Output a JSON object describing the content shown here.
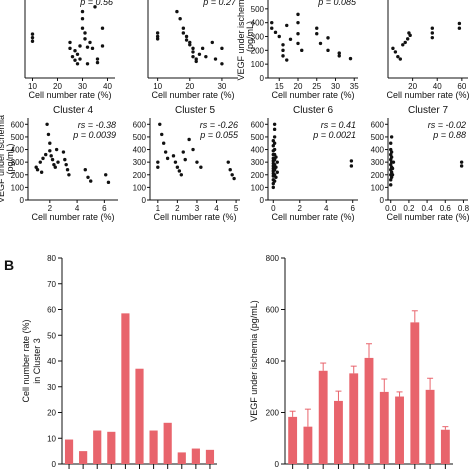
{
  "panels": {
    "A": "",
    "B": "B"
  },
  "chart_data": [
    {
      "type": "scatter",
      "id": "c1",
      "title": "",
      "stats": {
        "r": "",
        "p": "p = 0.56"
      },
      "xlabel": "Cell number rate (%)",
      "ylabel": "",
      "xticks": [
        10,
        20,
        30,
        40
      ],
      "yticks": [],
      "xlim": [
        7,
        43
      ],
      "ylim": [
        0,
        700
      ],
      "points": [
        [
          10,
          340
        ],
        [
          10,
          370
        ],
        [
          10,
          310
        ],
        [
          25,
          300
        ],
        [
          25,
          250
        ],
        [
          26,
          180
        ],
        [
          27,
          230
        ],
        [
          27,
          150
        ],
        [
          28,
          200
        ],
        [
          28,
          120
        ],
        [
          29,
          270
        ],
        [
          29,
          160
        ],
        [
          30,
          560
        ],
        [
          30,
          500
        ],
        [
          30,
          420
        ],
        [
          31,
          380
        ],
        [
          31,
          330
        ],
        [
          32,
          260
        ],
        [
          32,
          120
        ],
        [
          33,
          300
        ],
        [
          34,
          250
        ],
        [
          35,
          600
        ],
        [
          36,
          160
        ],
        [
          36,
          130
        ],
        [
          38,
          420
        ],
        [
          38,
          270
        ]
      ]
    },
    {
      "type": "scatter",
      "id": "c2",
      "title": "",
      "stats": {
        "r": "",
        "p": "p = 0.27"
      },
      "xlabel": "Cell number rate (%)",
      "ylabel": "",
      "xticks": [
        10,
        20,
        30
      ],
      "yticks": [],
      "xlim": [
        7,
        35
      ],
      "ylim": [
        0,
        700
      ],
      "points": [
        [
          10,
          350
        ],
        [
          10,
          380
        ],
        [
          10,
          330
        ],
        [
          16,
          560
        ],
        [
          17,
          500
        ],
        [
          18,
          420
        ],
        [
          18,
          380
        ],
        [
          19,
          350
        ],
        [
          19,
          320
        ],
        [
          20,
          300
        ],
        [
          20,
          280
        ],
        [
          21,
          250
        ],
        [
          21,
          220
        ],
        [
          21,
          180
        ],
        [
          22,
          160
        ],
        [
          22,
          140
        ],
        [
          23,
          200
        ],
        [
          24,
          250
        ],
        [
          25,
          180
        ],
        [
          27,
          300
        ],
        [
          28,
          160
        ],
        [
          30,
          250
        ],
        [
          30,
          120
        ]
      ]
    },
    {
      "type": "scatter",
      "id": "c3",
      "title": "",
      "stats": {
        "r": "",
        "p": "p = 0.085"
      },
      "xlabel": "Cell number rate (%)",
      "ylabel": "VEGF under ischemia (pg/mL)",
      "xticks": [
        15,
        20,
        25,
        30,
        35
      ],
      "yticks": [
        0,
        100,
        200,
        300,
        400,
        500
      ],
      "xlim": [
        12,
        36
      ],
      "ylim": [
        0,
        600
      ],
      "points": [
        [
          13,
          400
        ],
        [
          13,
          360
        ],
        [
          14,
          330
        ],
        [
          15,
          300
        ],
        [
          16,
          240
        ],
        [
          16,
          200
        ],
        [
          16,
          160
        ],
        [
          17,
          380
        ],
        [
          17,
          130
        ],
        [
          18,
          280
        ],
        [
          20,
          460
        ],
        [
          20,
          400
        ],
        [
          20,
          320
        ],
        [
          20,
          250
        ],
        [
          21,
          200
        ],
        [
          25,
          360
        ],
        [
          25,
          320
        ],
        [
          26,
          250
        ],
        [
          28,
          290
        ],
        [
          28,
          200
        ],
        [
          31,
          180
        ],
        [
          31,
          160
        ],
        [
          34,
          140
        ]
      ]
    },
    {
      "type": "scatter",
      "id": "c4top",
      "title": "",
      "stats": {
        "r": "",
        "p": ""
      },
      "xlabel": "Cell number rate (%)",
      "ylabel": "",
      "xticks": [
        20,
        40,
        60
      ],
      "yticks": [],
      "xlim": [
        0,
        65
      ],
      "ylim": [
        0,
        700
      ],
      "points": [
        [
          4,
          250
        ],
        [
          6,
          220
        ],
        [
          8,
          180
        ],
        [
          10,
          160
        ],
        [
          12,
          280
        ],
        [
          14,
          300
        ],
        [
          16,
          330
        ],
        [
          17,
          380
        ],
        [
          18,
          360
        ],
        [
          36,
          420
        ],
        [
          36,
          380
        ],
        [
          36,
          340
        ],
        [
          58,
          460
        ],
        [
          58,
          420
        ]
      ]
    },
    {
      "type": "scatter",
      "id": "cluster4",
      "title": "Cluster 4",
      "stats": {
        "r": "rs = -0.38",
        "p": "p = 0.0039"
      },
      "xlabel": "Cell number rate (%)",
      "ylabel": "VEGF under ischemia (pg/mL)",
      "xticks": [
        2,
        4,
        6
      ],
      "yticks": [
        0,
        100,
        200,
        300,
        400,
        500,
        600
      ],
      "xlim": [
        0.4,
        7
      ],
      "ylim": [
        0,
        650
      ],
      "points": [
        [
          1.0,
          260
        ],
        [
          1.1,
          240
        ],
        [
          1.3,
          300
        ],
        [
          1.4,
          220
        ],
        [
          1.5,
          330
        ],
        [
          1.7,
          360
        ],
        [
          1.8,
          600
        ],
        [
          1.9,
          520
        ],
        [
          2.0,
          450
        ],
        [
          2.0,
          390
        ],
        [
          2.1,
          350
        ],
        [
          2.2,
          320
        ],
        [
          2.3,
          280
        ],
        [
          2.4,
          260
        ],
        [
          2.5,
          400
        ],
        [
          2.6,
          300
        ],
        [
          3.0,
          380
        ],
        [
          3.1,
          320
        ],
        [
          3.2,
          280
        ],
        [
          3.3,
          240
        ],
        [
          3.4,
          200
        ],
        [
          4.6,
          240
        ],
        [
          4.8,
          180
        ],
        [
          5.0,
          150
        ],
        [
          6.1,
          200
        ],
        [
          6.3,
          140
        ]
      ]
    },
    {
      "type": "scatter",
      "id": "cluster5",
      "title": "Cluster 5",
      "stats": {
        "r": "rs = -0.26",
        "p": "p = 0.055"
      },
      "xlabel": "Cell number rate (%)",
      "ylabel": "",
      "xticks": [
        1,
        2,
        3,
        4,
        5
      ],
      "yticks": [
        0,
        100,
        200,
        300,
        400,
        500,
        600
      ],
      "xlim": [
        0.6,
        5.2
      ],
      "ylim": [
        0,
        650
      ],
      "points": [
        [
          1.0,
          260
        ],
        [
          1.0,
          300
        ],
        [
          1.1,
          600
        ],
        [
          1.2,
          520
        ],
        [
          1.3,
          450
        ],
        [
          1.4,
          380
        ],
        [
          1.5,
          330
        ],
        [
          1.8,
          350
        ],
        [
          1.9,
          300
        ],
        [
          2.0,
          260
        ],
        [
          2.1,
          230
        ],
        [
          2.2,
          200
        ],
        [
          2.3,
          380
        ],
        [
          2.4,
          320
        ],
        [
          2.6,
          480
        ],
        [
          2.8,
          400
        ],
        [
          3.0,
          300
        ],
        [
          3.2,
          260
        ],
        [
          4.6,
          300
        ],
        [
          4.7,
          240
        ],
        [
          4.8,
          200
        ],
        [
          4.9,
          170
        ]
      ]
    },
    {
      "type": "scatter",
      "id": "cluster6",
      "title": "Cluster 6",
      "stats": {
        "r": "rs = 0.41",
        "p": "p = 0.0021"
      },
      "xlabel": "Cell number rate (%)",
      "ylabel": "",
      "xticks": [
        0,
        2,
        4,
        6
      ],
      "yticks": [
        0,
        100,
        200,
        300,
        400,
        500,
        600
      ],
      "xlim": [
        -0.4,
        6.4
      ],
      "ylim": [
        0,
        650
      ],
      "points": [
        [
          0.0,
          100
        ],
        [
          0.0,
          130
        ],
        [
          0.0,
          160
        ],
        [
          0.0,
          190
        ],
        [
          0.0,
          210
        ],
        [
          0.0,
          230
        ],
        [
          0.0,
          250
        ],
        [
          0.0,
          270
        ],
        [
          0.0,
          290
        ],
        [
          0.0,
          310
        ],
        [
          0.0,
          330
        ],
        [
          0.0,
          360
        ],
        [
          0.0,
          390
        ],
        [
          0.0,
          430
        ],
        [
          0.0,
          470
        ],
        [
          0.1,
          150
        ],
        [
          0.1,
          200
        ],
        [
          0.1,
          240
        ],
        [
          0.1,
          280
        ],
        [
          0.1,
          320
        ],
        [
          0.1,
          360
        ],
        [
          0.1,
          400
        ],
        [
          0.1,
          450
        ],
        [
          0.1,
          500
        ],
        [
          0.1,
          560
        ],
        [
          0.1,
          600
        ],
        [
          0.2,
          180
        ],
        [
          0.2,
          260
        ],
        [
          0.2,
          340
        ],
        [
          0.3,
          220
        ],
        [
          0.3,
          300
        ],
        [
          5.9,
          310
        ],
        [
          5.9,
          270
        ]
      ]
    },
    {
      "type": "scatter",
      "id": "cluster7",
      "title": "Cluster 7",
      "stats": {
        "r": "rs = -0.02",
        "p": "p = 0.88"
      },
      "xlabel": "Cell number rate (%)",
      "ylabel": "",
      "xticks": [
        0.0,
        0.2,
        0.4,
        0.6,
        0.8
      ],
      "yticks": [
        0,
        100,
        200,
        300,
        400,
        500,
        600
      ],
      "xlim": [
        -0.03,
        0.85
      ],
      "ylim": [
        0,
        650
      ],
      "points": [
        [
          0.0,
          120
        ],
        [
          0.0,
          160
        ],
        [
          0.0,
          200
        ],
        [
          0.0,
          240
        ],
        [
          0.0,
          280
        ],
        [
          0.0,
          320
        ],
        [
          0.0,
          360
        ],
        [
          0.0,
          400
        ],
        [
          0.0,
          450
        ],
        [
          0.01,
          180
        ],
        [
          0.01,
          220
        ],
        [
          0.01,
          260
        ],
        [
          0.01,
          300
        ],
        [
          0.01,
          340
        ],
        [
          0.01,
          380
        ],
        [
          0.01,
          500
        ],
        [
          0.02,
          200
        ],
        [
          0.02,
          250
        ],
        [
          0.03,
          300
        ],
        [
          0.78,
          300
        ],
        [
          0.78,
          270
        ]
      ]
    },
    {
      "type": "bar",
      "id": "bar-rate",
      "title": "",
      "xlabel": "",
      "ylabel": "Cell number rate (%) in Cluster 3",
      "yticks": [
        0,
        10,
        20,
        30,
        40,
        50,
        60,
        70,
        80
      ],
      "ylim": [
        0,
        80
      ],
      "values": [
        9.5,
        5,
        13,
        12.5,
        58.5,
        37,
        13,
        16,
        4.5,
        6,
        5.5
      ]
    },
    {
      "type": "bar",
      "id": "bar-vegf",
      "title": "",
      "xlabel": "",
      "ylabel": "VEGF under ischemia (pg/mL)",
      "yticks": [
        0,
        200,
        400,
        600,
        800
      ],
      "ylim": [
        0,
        800
      ],
      "values": [
        183,
        145,
        362,
        245,
        352,
        412,
        280,
        262,
        550,
        288,
        133
      ],
      "errors": [
        22,
        68,
        30,
        38,
        28,
        55,
        50,
        18,
        45,
        45,
        12
      ]
    }
  ]
}
